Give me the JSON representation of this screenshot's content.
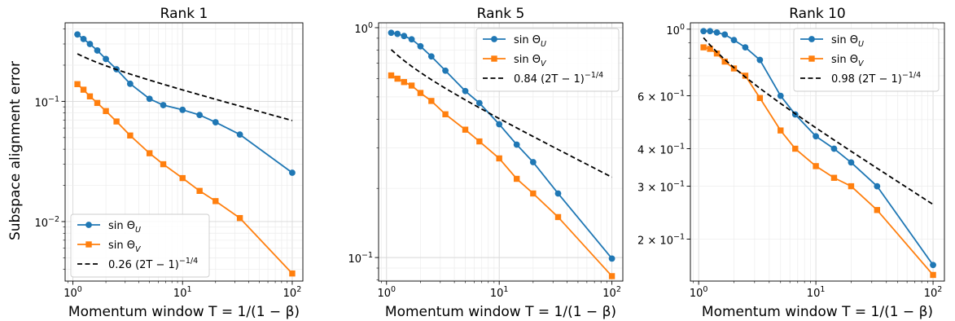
{
  "figure": {
    "ylabel": "Subspace alignment error",
    "xlabel": "Momentum window T = 1/(1 − β)"
  },
  "chart_data": [
    {
      "type": "line",
      "title": "Rank 1",
      "xscale": "log",
      "yscale": "log",
      "xlim": [
        0.85,
        125
      ],
      "ylim": [
        0.0032,
        0.45
      ],
      "x_ticks": [
        {
          "v": 1,
          "base": "10",
          "exp": "0"
        },
        {
          "v": 10,
          "base": "10",
          "exp": "1"
        },
        {
          "v": 100,
          "base": "10",
          "exp": "2"
        }
      ],
      "y_ticks": [
        {
          "v": 0.01,
          "base": "10",
          "exp": "−2"
        },
        {
          "v": 0.1,
          "base": "10",
          "exp": "−1"
        }
      ],
      "grid": true,
      "legend_position": "lower-left",
      "x": [
        1.1,
        1.25,
        1.43,
        1.67,
        2,
        2.5,
        3.33,
        5,
        6.67,
        10,
        14.3,
        20,
        33.3,
        100
      ],
      "series": [
        {
          "name": "sin Θ_U",
          "legend_main": "sin Θ",
          "legend_sub": "U",
          "color": "#1f77b4",
          "marker": "circle",
          "style": "solid",
          "values": [
            0.36,
            0.33,
            0.3,
            0.265,
            0.225,
            0.185,
            0.14,
            0.105,
            0.093,
            0.085,
            0.077,
            0.067,
            0.053,
            0.0255
          ]
        },
        {
          "name": "sin Θ_V",
          "legend_main": "sin Θ",
          "legend_sub": "V",
          "color": "#ff7f0e",
          "marker": "square",
          "style": "solid",
          "values": [
            0.139,
            0.125,
            0.11,
            0.097,
            0.083,
            0.068,
            0.052,
            0.037,
            0.03,
            0.023,
            0.018,
            0.0148,
            0.0107,
            0.0037
          ]
        },
        {
          "name": "0.26 (2T − 1)^(−1/4)",
          "legend_main": "0.26 (2T − 1)",
          "legend_sup": "−1/4",
          "color": "#000000",
          "marker": "none",
          "style": "dashed",
          "coef": 0.26
        }
      ]
    },
    {
      "type": "line",
      "title": "Rank 5",
      "xscale": "log",
      "yscale": "log",
      "xlim": [
        0.85,
        125
      ],
      "ylim": [
        0.079,
        1.05
      ],
      "x_ticks": [
        {
          "v": 1,
          "base": "10",
          "exp": "0"
        },
        {
          "v": 10,
          "base": "10",
          "exp": "1"
        },
        {
          "v": 100,
          "base": "10",
          "exp": "2"
        }
      ],
      "y_ticks": [
        {
          "v": 0.1,
          "base": "10",
          "exp": "−1"
        },
        {
          "v": 1,
          "base": "10",
          "exp": "0"
        }
      ],
      "grid": true,
      "legend_position": "upper-right",
      "x": [
        1.1,
        1.25,
        1.43,
        1.67,
        2,
        2.5,
        3.33,
        5,
        6.67,
        10,
        14.3,
        20,
        33.3,
        100
      ],
      "series": [
        {
          "name": "sin Θ_U",
          "legend_main": "sin Θ",
          "legend_sub": "U",
          "color": "#1f77b4",
          "marker": "circle",
          "style": "solid",
          "values": [
            0.95,
            0.94,
            0.92,
            0.89,
            0.83,
            0.75,
            0.65,
            0.53,
            0.47,
            0.38,
            0.31,
            0.26,
            0.19,
            0.099
          ]
        },
        {
          "name": "sin Θ_V",
          "legend_main": "sin Θ",
          "legend_sub": "V",
          "color": "#ff7f0e",
          "marker": "square",
          "style": "solid",
          "values": [
            0.62,
            0.6,
            0.58,
            0.56,
            0.52,
            0.48,
            0.42,
            0.36,
            0.32,
            0.27,
            0.22,
            0.19,
            0.15,
            0.083
          ]
        },
        {
          "name": "0.84 (2T − 1)^(−1/4)",
          "legend_main": "0.84 (2T − 1)",
          "legend_sup": "−1/4",
          "color": "#000000",
          "marker": "none",
          "style": "dashed",
          "coef": 0.84
        }
      ]
    },
    {
      "type": "line",
      "title": "Rank 10",
      "xscale": "log",
      "yscale": "log",
      "xlim": [
        0.85,
        125
      ],
      "ylim": [
        0.145,
        1.05
      ],
      "x_ticks": [
        {
          "v": 1,
          "base": "10",
          "exp": "0"
        },
        {
          "v": 10,
          "base": "10",
          "exp": "1"
        },
        {
          "v": 100,
          "base": "10",
          "exp": "2"
        }
      ],
      "y_ticks": [
        {
          "v": 0.2,
          "base": "2 × 10",
          "exp": "−1"
        },
        {
          "v": 0.3,
          "base": "3 × 10",
          "exp": "−1"
        },
        {
          "v": 0.4,
          "base": "4 × 10",
          "exp": "−1"
        },
        {
          "v": 0.6,
          "base": "6 × 10",
          "exp": "−1"
        },
        {
          "v": 1,
          "base": "10",
          "exp": "0"
        }
      ],
      "grid": true,
      "legend_position": "upper-right",
      "x": [
        1.1,
        1.25,
        1.43,
        1.67,
        2,
        2.5,
        3.33,
        5,
        6.67,
        10,
        14.3,
        20,
        33.3,
        100
      ],
      "series": [
        {
          "name": "sin Θ_U",
          "legend_main": "sin Θ",
          "legend_sub": "U",
          "color": "#1f77b4",
          "marker": "circle",
          "style": "solid",
          "values": [
            0.985,
            0.985,
            0.975,
            0.96,
            0.92,
            0.87,
            0.79,
            0.6,
            0.52,
            0.44,
            0.4,
            0.36,
            0.3,
            0.164
          ]
        },
        {
          "name": "sin Θ_V",
          "legend_main": "sin Θ",
          "legend_sub": "V",
          "color": "#ff7f0e",
          "marker": "square",
          "style": "solid",
          "values": [
            0.87,
            0.86,
            0.83,
            0.78,
            0.74,
            0.7,
            0.59,
            0.46,
            0.4,
            0.35,
            0.32,
            0.3,
            0.25,
            0.152
          ]
        },
        {
          "name": "0.98 (2T − 1)^(−1/4)",
          "legend_main": "0.98 (2T − 1)",
          "legend_sup": "−1/4",
          "color": "#000000",
          "marker": "none",
          "style": "dashed",
          "coef": 0.98
        }
      ]
    }
  ]
}
